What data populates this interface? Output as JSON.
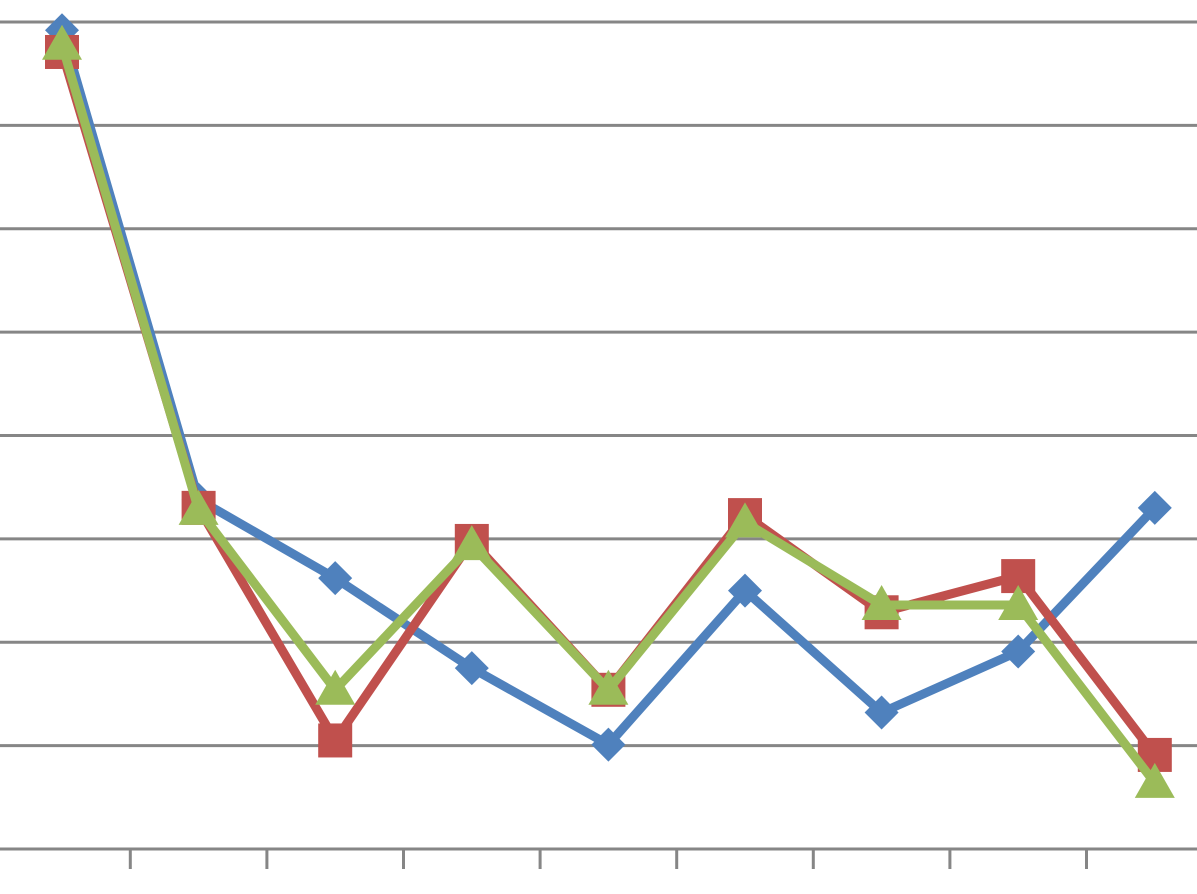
{
  "chart_data": {
    "type": "line",
    "categories": [
      null,
      null,
      null,
      null,
      null,
      null,
      null,
      null,
      null
    ],
    "series": [
      {
        "color": "#4f81bd",
        "marker": "diamond",
        "values": [
          7.92,
          3.38,
          2.62,
          1.75,
          1.01,
          2.5,
          1.32,
          1.91,
          3.3
        ]
      },
      {
        "color": "#c0504d",
        "marker": "square",
        "values": [
          7.71,
          3.3,
          1.05,
          2.98,
          1.54,
          3.23,
          2.29,
          2.64,
          0.91
        ]
      },
      {
        "color": "#9bbb59",
        "marker": "triangle",
        "values": [
          7.78,
          3.28,
          1.54,
          2.94,
          1.54,
          3.16,
          2.36,
          2.36,
          0.64
        ]
      }
    ],
    "ylim": [
      0,
      8
    ],
    "yticks": [
      0,
      1,
      2,
      3,
      4,
      5,
      6,
      7,
      8
    ],
    "grid": true
  }
}
